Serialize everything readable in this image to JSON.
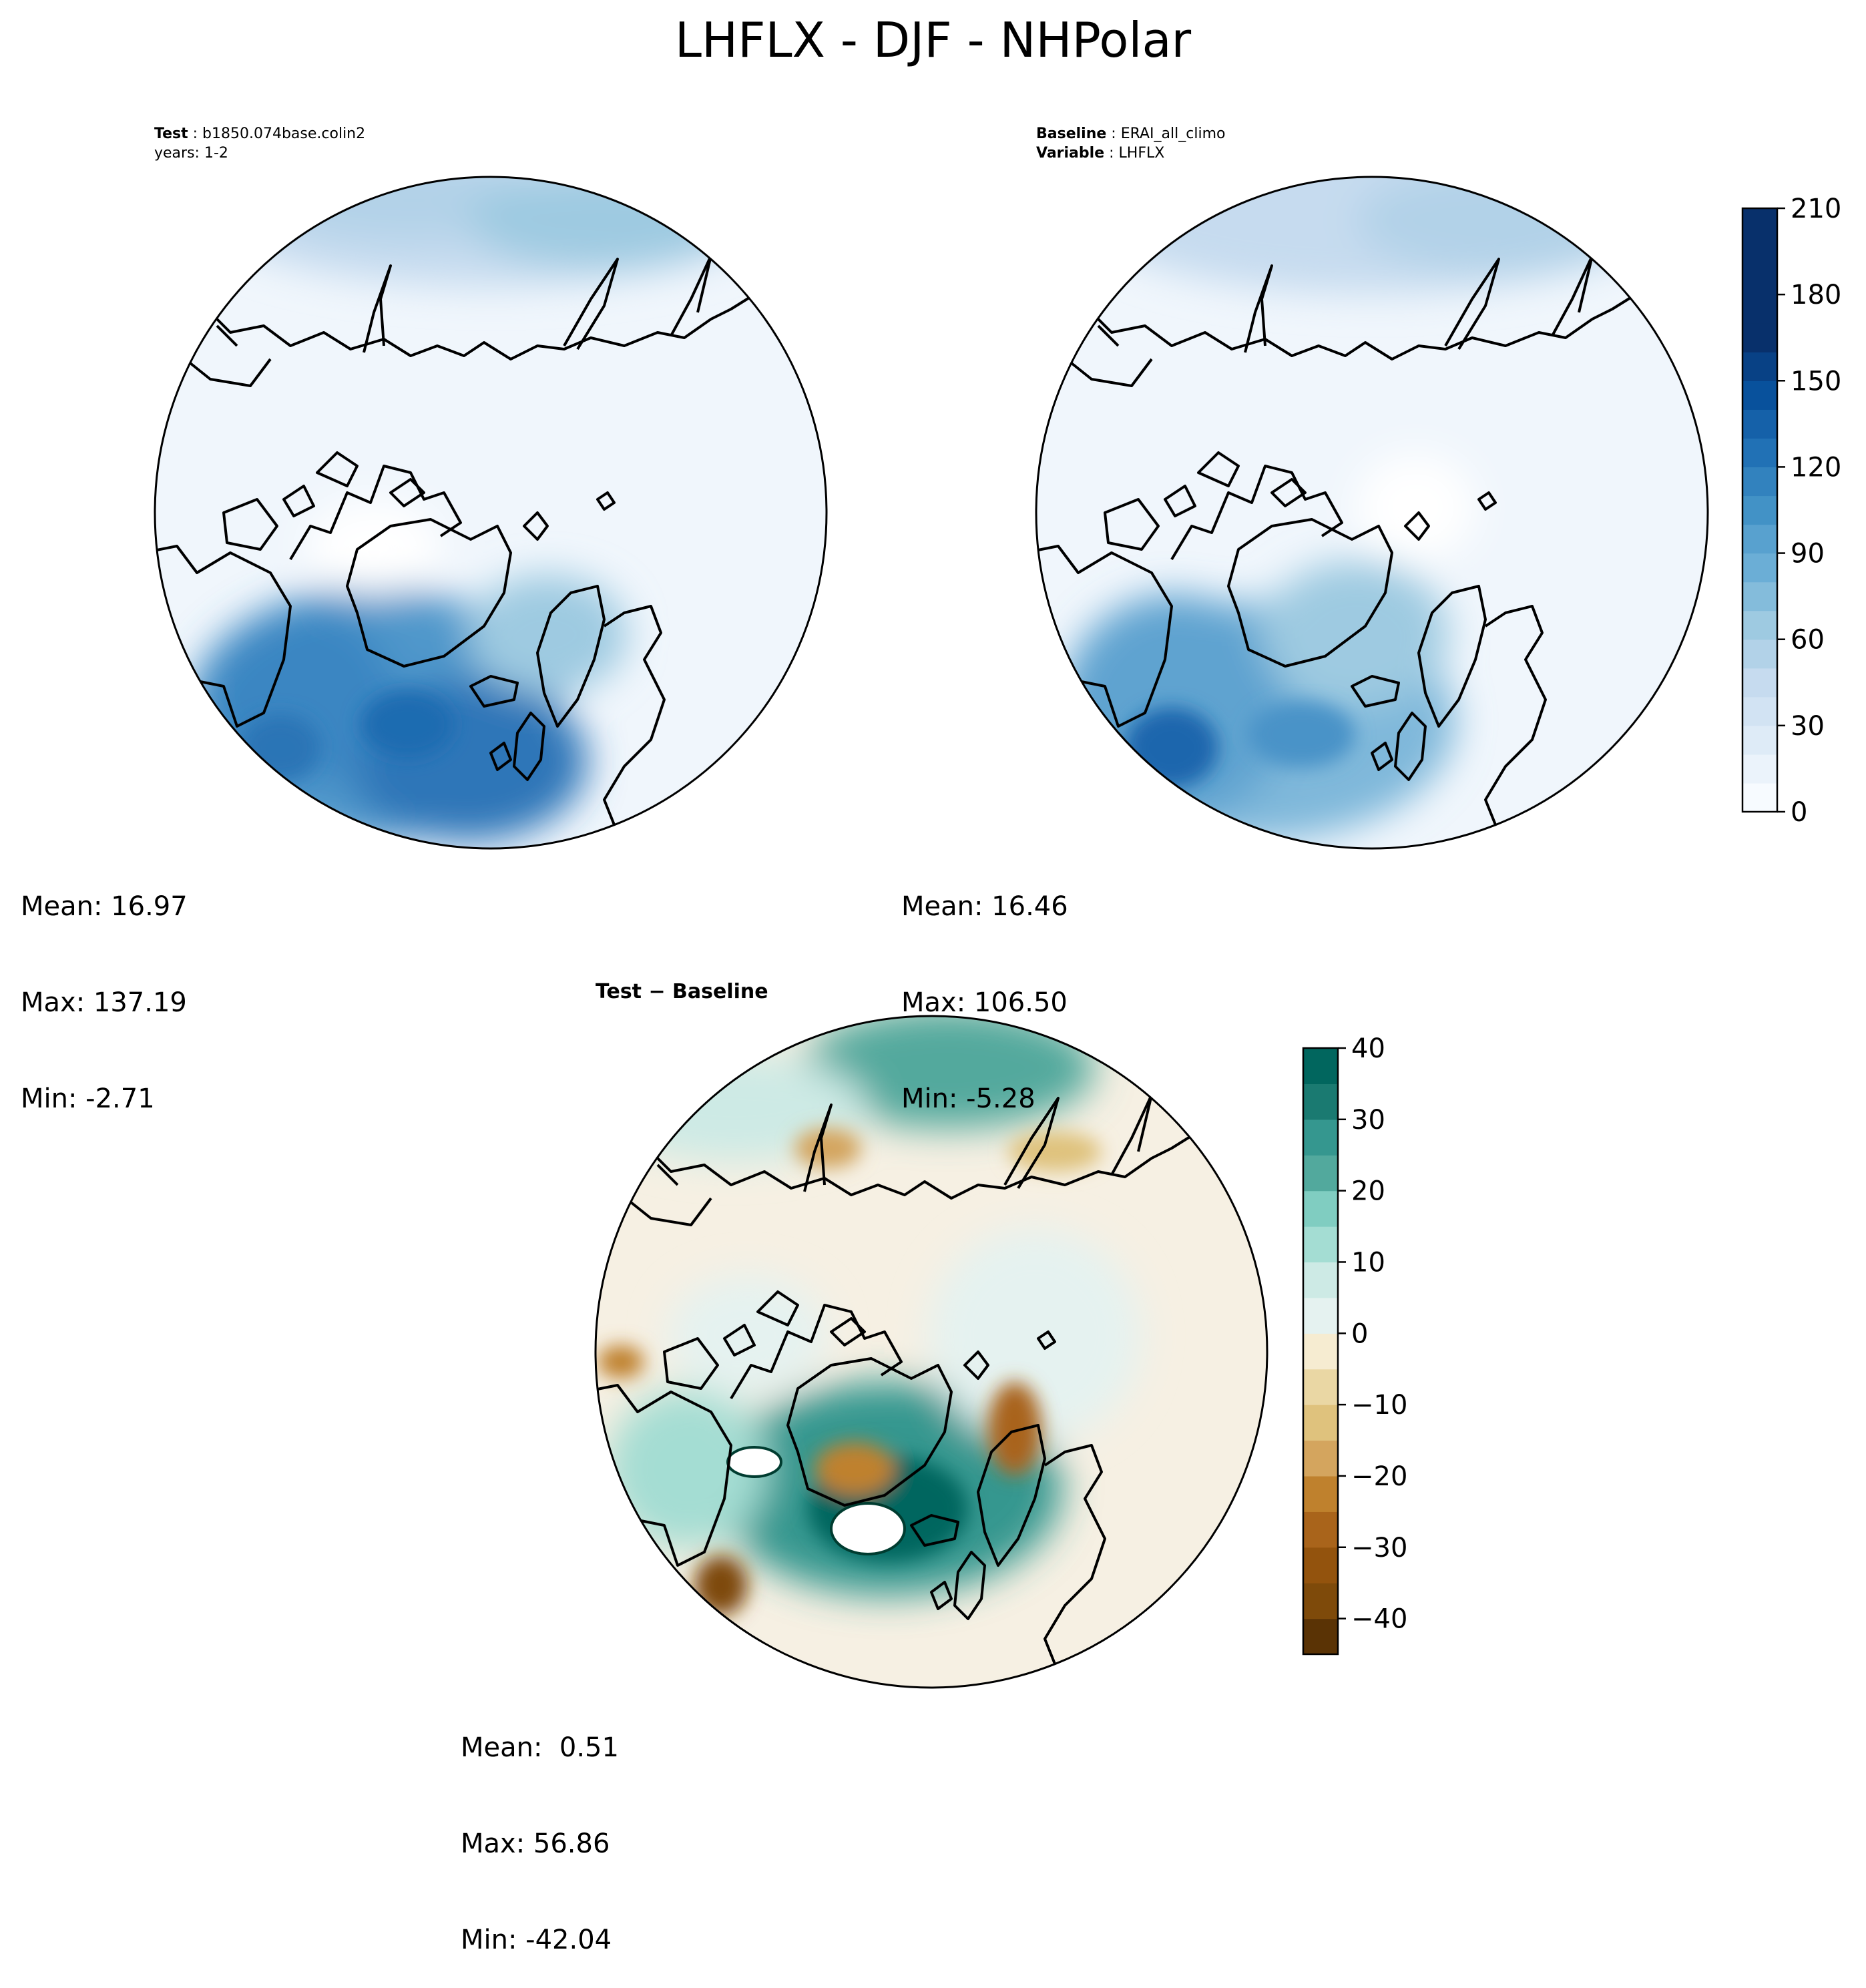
{
  "chart_data": {
    "type": "contour-map",
    "title": "LHFLX - DJF - NHPolar",
    "panels": [
      {
        "id": "test",
        "header_line1_label": "Test",
        "header_line1_value": "b1850.074base.colin2",
        "header_line2": "years: 1-2",
        "stats": {
          "mean": "Mean: 16.97",
          "max": "Max: 137.19",
          "min": "Min: -2.71"
        }
      },
      {
        "id": "baseline",
        "header_line1_label": "Baseline",
        "header_line1_value": "ERAI_all_climo",
        "header_line2_label": "Variable",
        "header_line2_value": "LHFLX",
        "stats": {
          "mean": "Mean: 16.46",
          "max": "Max: 106.50",
          "min": "Min: -5.28"
        }
      },
      {
        "id": "diff",
        "subtitle": "Test − Baseline",
        "stats": {
          "mean": "Mean:  0.51",
          "max": "Max: 56.86",
          "min": "Min: -42.04"
        }
      }
    ],
    "colorbars": [
      {
        "id": "main",
        "colormap": "Blues",
        "range": [
          0,
          210
        ],
        "ticks": [
          0,
          30,
          60,
          90,
          120,
          150,
          180,
          210
        ],
        "tick_labels": [
          "0",
          "30",
          "60",
          "90",
          "120",
          "150",
          "180",
          "210"
        ],
        "levels": 21,
        "colors": [
          "#f7fbff",
          "#ebf3fb",
          "#deebf7",
          "#d2e3f3",
          "#c6dbef",
          "#b2d2e8",
          "#9ecae1",
          "#84bcdb",
          "#6baed6",
          "#58a1cf",
          "#4292c6",
          "#3282be",
          "#2171b5",
          "#1561a9",
          "#08519c",
          "#084185",
          "#08306b",
          "#08306b",
          "#08306b",
          "#08306b",
          "#08306b"
        ]
      },
      {
        "id": "diff",
        "colormap": "BrBG",
        "range": [
          -45,
          40
        ],
        "ticks": [
          -40,
          -30,
          -20,
          -10,
          0,
          10,
          20,
          30,
          40
        ],
        "tick_labels": [
          "−40",
          "−30",
          "−20",
          "−10",
          "0",
          "10",
          "20",
          "30",
          "40"
        ],
        "band_edges": [
          -45,
          -40,
          -35,
          -30,
          -25,
          -20,
          -15,
          -10,
          -5,
          0,
          5,
          10,
          15,
          20,
          25,
          30,
          35,
          40
        ],
        "colors": [
          "#5a3305",
          "#7e4a0a",
          "#93530d",
          "#a9641b",
          "#bf812d",
          "#d4a55e",
          "#dfc27d",
          "#ead7a4",
          "#f6ecd1",
          "#e5f2f0",
          "#cdeae5",
          "#a4ddd3",
          "#80cdc1",
          "#52a99d",
          "#35978f",
          "#1a7a71",
          "#01665e",
          "#003c30"
        ]
      }
    ]
  }
}
